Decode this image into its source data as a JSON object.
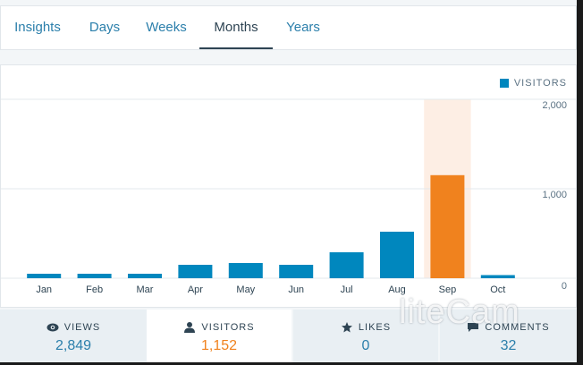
{
  "tabs": [
    {
      "label": "Insights",
      "active": false
    },
    {
      "label": "Days",
      "active": false
    },
    {
      "label": "Weeks",
      "active": false
    },
    {
      "label": "Months",
      "active": true
    },
    {
      "label": "Years",
      "active": false
    }
  ],
  "chart_data": {
    "type": "bar",
    "legend": "VISITORS",
    "categories": [
      "Jan",
      "Feb",
      "Mar",
      "Apr",
      "May",
      "Jun",
      "Jul",
      "Aug",
      "Sep",
      "Oct"
    ],
    "values": [
      50,
      50,
      50,
      150,
      170,
      150,
      290,
      520,
      1152,
      35
    ],
    "highlight_index": 8,
    "y_ticks": [
      "2,000",
      "1,000",
      "0"
    ],
    "ylim": [
      0,
      2000
    ],
    "grid": true,
    "colors": {
      "bar": "#0087be",
      "highlight": "#f0821e",
      "highlight_bg": "#fdeee4"
    }
  },
  "summary": {
    "views": {
      "label": "VIEWS",
      "value": "2,849",
      "icon": "eye-icon"
    },
    "visitors": {
      "label": "VISITORS",
      "value": "1,152",
      "icon": "person-icon"
    },
    "likes": {
      "label": "LIKES",
      "value": "0",
      "icon": "star-icon"
    },
    "comments": {
      "label": "COMMENTS",
      "value": "32",
      "icon": "comment-icon"
    }
  },
  "watermark": "liteCam"
}
